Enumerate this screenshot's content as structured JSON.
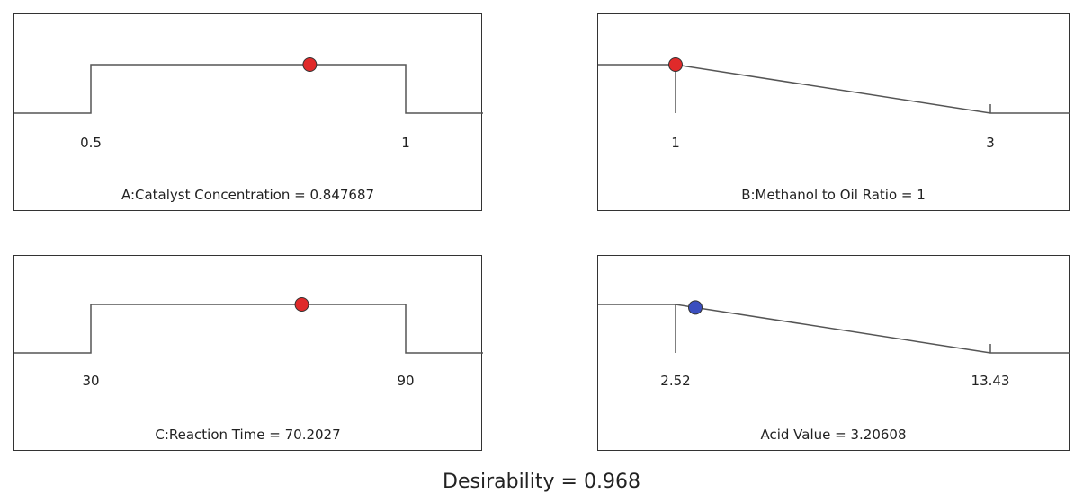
{
  "chart_data": [
    {
      "type": "line",
      "title": "A:Catalyst Concentration = 0.847687",
      "ticks": [
        "0.5",
        "1"
      ],
      "shape": "range",
      "low": 0.5,
      "high": 1,
      "value": 0.847687,
      "point_color": "#e02a2a"
    },
    {
      "type": "line",
      "title": "B:Methanol to Oil Ratio = 1",
      "ticks": [
        "1",
        "3"
      ],
      "shape": "minimize",
      "low": 1,
      "high": 3,
      "value": 1,
      "point_color": "#e02a2a"
    },
    {
      "type": "line",
      "title": "C:Reaction Time = 70.2027",
      "ticks": [
        "30",
        "90"
      ],
      "shape": "range",
      "low": 30,
      "high": 90,
      "value": 70.2027,
      "point_color": "#e02a2a"
    },
    {
      "type": "line",
      "title": "Acid Value = 3.20608",
      "ticks": [
        "2.52",
        "13.43"
      ],
      "shape": "minimize",
      "low": 2.52,
      "high": 13.43,
      "value": 3.20608,
      "point_color": "#3b4fbf"
    }
  ],
  "desirability_label": "Desirability = 0.968"
}
